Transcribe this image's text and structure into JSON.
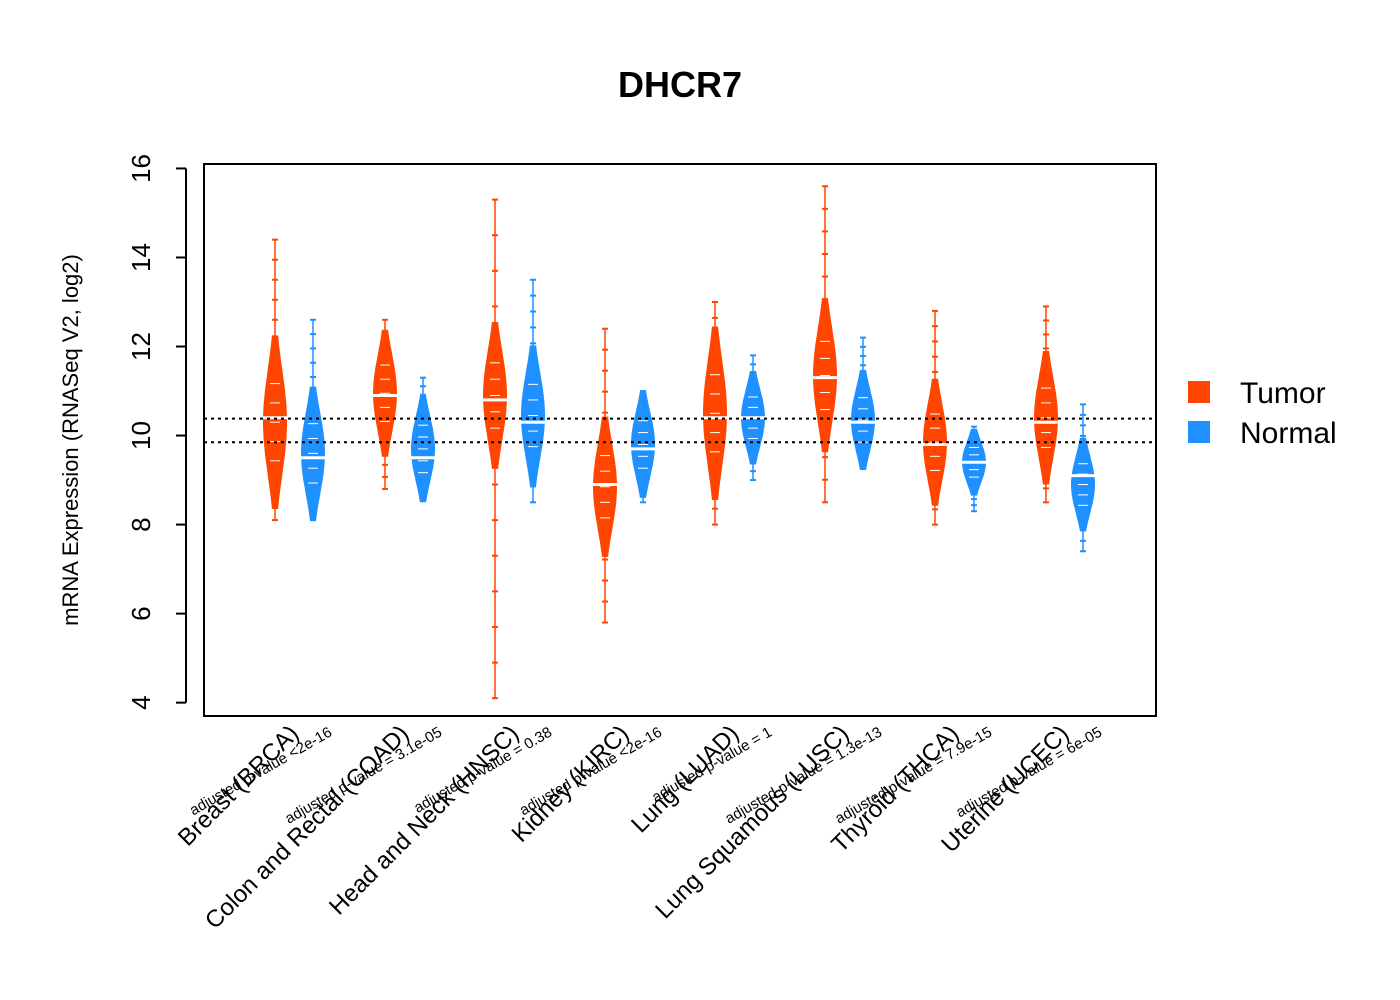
{
  "chart_data": {
    "type": "beanplot",
    "title": "DHCR7",
    "ylabel": "mRNA Expression (RNASeq V2, log2)",
    "ylim": [
      3.7,
      16.1
    ],
    "yticks": [
      "4",
      "6",
      "8",
      "10",
      "12",
      "14",
      "16"
    ],
    "reference_lines": [
      9.85,
      10.38
    ],
    "legend": {
      "position": "right",
      "entries": [
        {
          "name": "Tumor",
          "color": "#FF4500"
        },
        {
          "name": "Normal",
          "color": "#1E90FF"
        }
      ]
    },
    "categories": [
      {
        "label": "Breast (BRCA)",
        "pvalue": "adjusted p-value <2e-16",
        "tumor": {
          "min": 8.1,
          "max": 14.4,
          "median": 10.4,
          "core": [
            9.0,
            11.6
          ]
        },
        "normal": {
          "min": 8.1,
          "max": 12.6,
          "median": 9.5,
          "core": [
            8.6,
            10.6
          ]
        }
      },
      {
        "label": "Colon and Rectal (COAD)",
        "pvalue": "adjusted p-value = 3.1e-05",
        "tumor": {
          "min": 8.8,
          "max": 12.6,
          "median": 10.9,
          "core": [
            10.0,
            11.9
          ]
        },
        "normal": {
          "min": 8.6,
          "max": 11.3,
          "median": 9.5,
          "core": [
            8.9,
            10.5
          ]
        }
      },
      {
        "label": "Head and Neck (HNSC)",
        "pvalue": "adjusted p-value = 0.38",
        "tumor": {
          "min": 4.1,
          "max": 15.3,
          "median": 10.8,
          "core": [
            9.8,
            12.0
          ]
        },
        "normal": {
          "min": 8.5,
          "max": 13.5,
          "median": 10.3,
          "core": [
            9.4,
            11.5
          ]
        }
      },
      {
        "label": "Kidney (KIRC)",
        "pvalue": "adjusted p-value <2e-16",
        "tumor": {
          "min": 5.8,
          "max": 12.4,
          "median": 8.9,
          "core": [
            7.8,
            9.9
          ]
        },
        "normal": {
          "min": 8.5,
          "max": 11.0,
          "median": 9.7,
          "core": [
            9.0,
            10.6
          ]
        }
      },
      {
        "label": "Lung (LUAD)",
        "pvalue": "adjusted p-value = 1",
        "tumor": {
          "min": 8.0,
          "max": 13.0,
          "median": 10.4,
          "core": [
            9.2,
            11.8
          ]
        },
        "normal": {
          "min": 9.0,
          "max": 11.8,
          "median": 10.4,
          "core": [
            9.7,
            11.1
          ]
        }
      },
      {
        "label": "Lung Squamous (LUSC)",
        "pvalue": "adjusted p-value = 1.3e-13",
        "tumor": {
          "min": 8.5,
          "max": 15.6,
          "median": 11.3,
          "core": [
            10.2,
            12.5
          ]
        },
        "normal": {
          "min": 9.3,
          "max": 12.2,
          "median": 10.3,
          "core": [
            9.6,
            11.1
          ]
        }
      },
      {
        "label": "Thyroid (THCA)",
        "pvalue": "adjusted p-value = 7.9e-15",
        "tumor": {
          "min": 8.0,
          "max": 12.8,
          "median": 9.8,
          "core": [
            8.9,
            10.8
          ]
        },
        "normal": {
          "min": 8.3,
          "max": 10.2,
          "median": 9.4,
          "core": [
            8.9,
            9.9
          ]
        }
      },
      {
        "label": "Uterine (UCEC)",
        "pvalue": "adjusted p-value = 6e-05",
        "tumor": {
          "min": 8.5,
          "max": 12.9,
          "median": 10.3,
          "core": [
            9.4,
            11.4
          ]
        },
        "normal": {
          "min": 7.4,
          "max": 10.7,
          "median": 9.1,
          "core": [
            8.2,
            9.6
          ]
        }
      }
    ]
  }
}
